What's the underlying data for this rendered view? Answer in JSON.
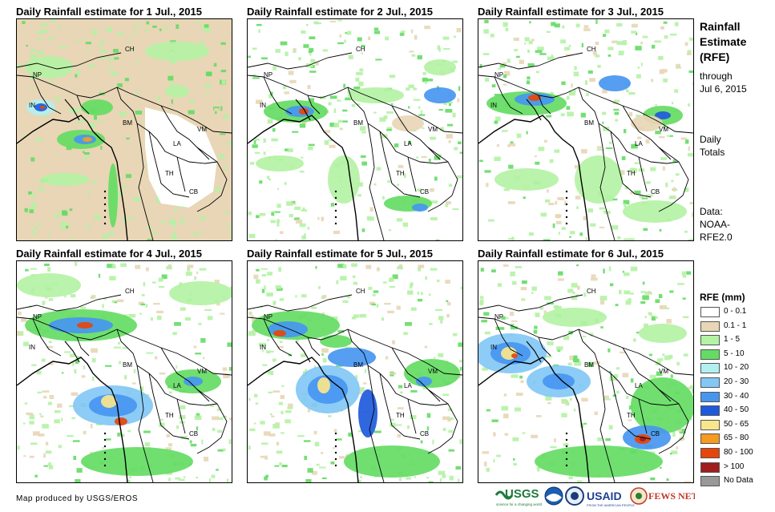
{
  "panels": [
    {
      "title": "Daily Rainfall estimate for 1 Jul., 2015",
      "variant": 0
    },
    {
      "title": "Daily Rainfall estimate for 2 Jul., 2015",
      "variant": 1
    },
    {
      "title": "Daily Rainfall estimate for 3 Jul., 2015",
      "variant": 2
    },
    {
      "title": "Daily Rainfall estimate for 4 Jul., 2015",
      "variant": 3
    },
    {
      "title": "Daily Rainfall estimate for 5 Jul., 2015",
      "variant": 4
    },
    {
      "title": "Daily Rainfall estimate for 6 Jul., 2015",
      "variant": 5
    }
  ],
  "country_labels": [
    "CH",
    "NP",
    "IN",
    "BM",
    "LA",
    "VM",
    "TH",
    "CB"
  ],
  "side": {
    "title_line1": "Rainfall",
    "title_line2": "Estimate",
    "title_line3": "(RFE)",
    "through": "through",
    "date": "Jul 6, 2015",
    "daily": "Daily",
    "totals": "Totals",
    "data_label": "Data:",
    "data_src1": "NOAA-",
    "data_src2": "RFE2.0"
  },
  "legend": {
    "title": "RFE (mm)",
    "items": [
      {
        "label": "0 - 0.1",
        "color": "#ffffff"
      },
      {
        "label": "0.1 - 1",
        "color": "#e8d6b6"
      },
      {
        "label": "1 - 5",
        "color": "#b4f2a4"
      },
      {
        "label": "5 - 10",
        "color": "#64dc64"
      },
      {
        "label": "10 - 20",
        "color": "#b2f0f0"
      },
      {
        "label": "20 - 30",
        "color": "#82c8f5"
      },
      {
        "label": "30 - 40",
        "color": "#4696f0"
      },
      {
        "label": "40 - 50",
        "color": "#1e5adc"
      },
      {
        "label": "50 - 65",
        "color": "#f8e68c"
      },
      {
        "label": "65 - 80",
        "color": "#f59b1e"
      },
      {
        "label": "80 - 100",
        "color": "#e6460a"
      },
      {
        "label": "> 100",
        "color": "#a01e1e"
      },
      {
        "label": "No Data",
        "color": "#999999"
      }
    ]
  },
  "credit": "Map produced by USGS/EROS",
  "logos": {
    "usgs": "USGS",
    "usgs_tagline": "science for a changing world",
    "usaid": "USAID",
    "usaid_tagline": "FROM THE AMERICAN PEOPLE",
    "fewsnet": "FEWS NET"
  }
}
